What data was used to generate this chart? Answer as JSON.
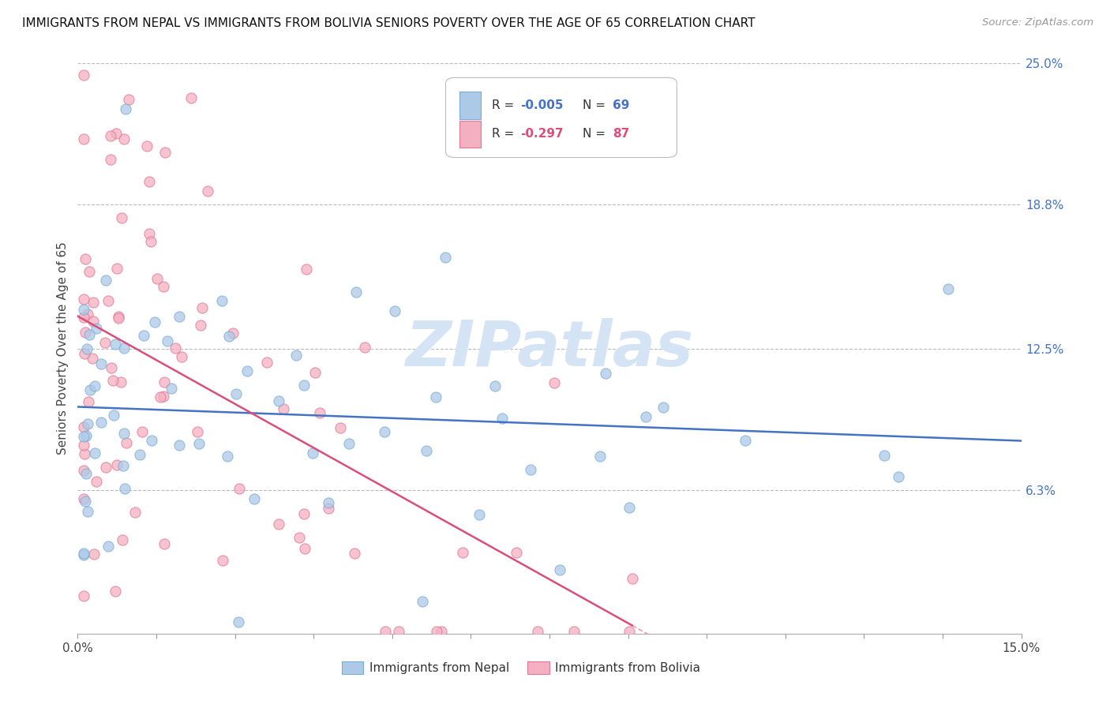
{
  "title": "IMMIGRANTS FROM NEPAL VS IMMIGRANTS FROM BOLIVIA SENIORS POVERTY OVER THE AGE OF 65 CORRELATION CHART",
  "source": "Source: ZipAtlas.com",
  "ylabel": "Seniors Poverty Over the Age of 65",
  "xlim": [
    0.0,
    0.15
  ],
  "ylim": [
    0.0,
    0.25
  ],
  "ytick_right_labels": [
    "25.0%",
    "18.8%",
    "12.5%",
    "6.3%"
  ],
  "ytick_right_vals": [
    0.25,
    0.188,
    0.125,
    0.063
  ],
  "legend_text1": "R = -0.005  N = 69",
  "legend_text2": "R = -0.297  N = 87",
  "nepal_face_color": "#adc9e8",
  "nepal_edge_color": "#7aadd4",
  "bolivia_face_color": "#f4afc0",
  "bolivia_edge_color": "#e07898",
  "trend_nepal_color": "#4472c4",
  "trend_bolivia_color": "#d94f7a",
  "watermark": "ZIPatlas",
  "watermark_color": "#d5e4f5",
  "background_color": "#ffffff",
  "grid_color": "#bbbbbb",
  "title_fontsize": 11,
  "label_fontsize": 11,
  "tick_fontsize": 11
}
